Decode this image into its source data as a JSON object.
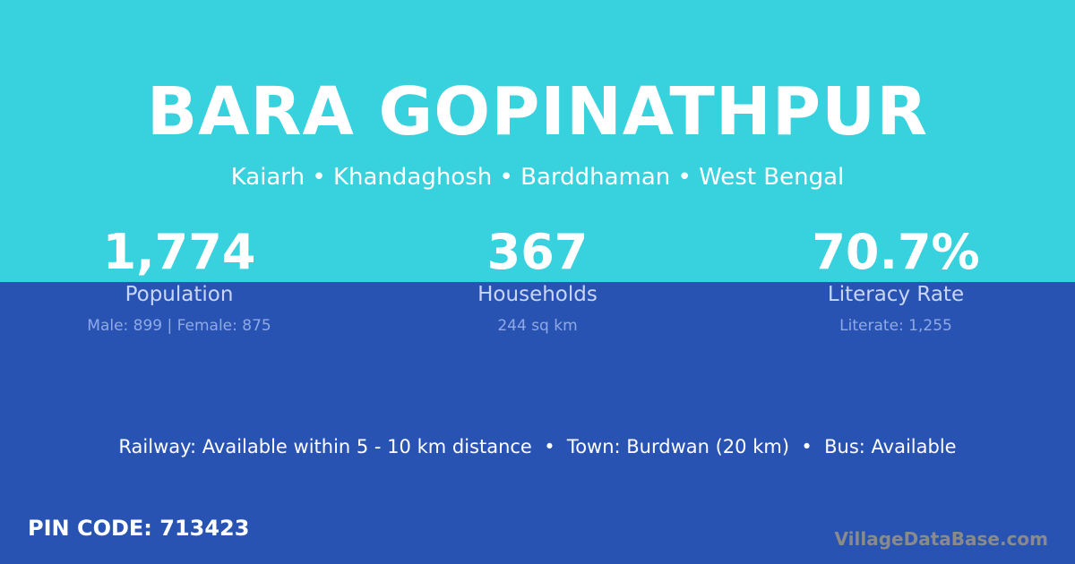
{
  "title": "BARA GOPINATHPUR",
  "subtitle": "Kaiarh • Khandaghosh • Barddhaman • West Bengal",
  "stats": [
    {
      "value": "1,774",
      "label": "Population",
      "detail": "Male: 899 | Female: 875"
    },
    {
      "value": "367",
      "label": "Households",
      "detail": "244 sq km"
    },
    {
      "value": "70.7%",
      "label": "Literacy Rate",
      "detail": "Literate: 1,255"
    }
  ],
  "transport": "Railway: Available within 5 - 10 km distance  •  Town: Burdwan (20 km)  •  Bus: Available",
  "pin": "PIN CODE: 713423",
  "brand": "VillageDataBase.com",
  "colors": {
    "top": "#38d1de",
    "bottom": "#2853b3"
  }
}
